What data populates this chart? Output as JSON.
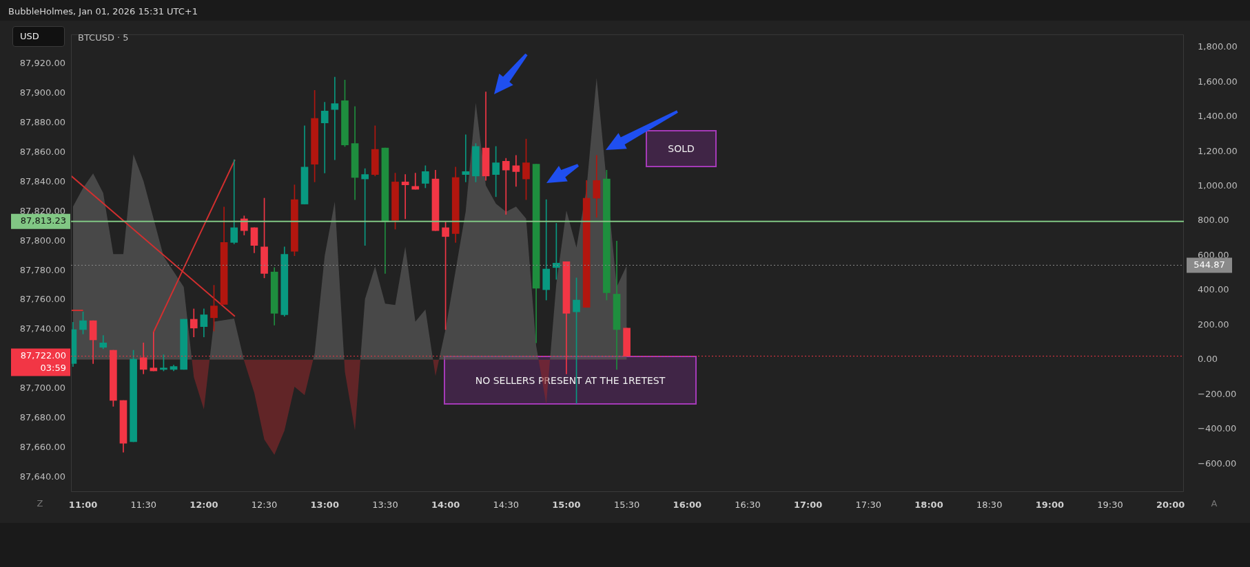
{
  "chart_data": {
    "type": "candlestick",
    "title": "BTCUSD · 5",
    "subtitle": "BubbleHolmes, Jan 01, 2026 15:31 UTC+1",
    "ylabel": "USD",
    "x": [
      10.9167,
      11,
      11.0833,
      11.1667,
      11.25,
      11.3333,
      11.4167,
      11.5,
      11.5833,
      11.6667,
      11.75,
      11.8333,
      11.9167,
      12,
      12.0833,
      12.1667,
      12.25,
      12.3333,
      12.4167,
      12.5,
      12.5833,
      12.6667,
      12.75,
      12.8333,
      12.9167,
      13,
      13.0833,
      13.1667,
      13.25,
      13.3333,
      13.4167,
      13.5,
      13.5833,
      13.6667,
      13.75,
      13.8333,
      13.9167,
      14,
      14.0833,
      14.1667,
      14.25,
      14.3333,
      14.4167,
      14.5,
      14.5833,
      14.6667,
      14.75,
      14.8333,
      14.9167,
      15,
      15.0833,
      15.1667,
      15.25,
      15.3333,
      15.4167,
      15.5
    ],
    "ohlc": [
      [
        87717,
        87745,
        87715,
        87740
      ],
      [
        87740,
        87752,
        87737,
        87746
      ],
      [
        87746,
        87746,
        87717,
        87733
      ],
      [
        87728,
        87736,
        87727,
        87731
      ],
      [
        87726,
        87726,
        87688,
        87692
      ],
      [
        87692,
        87692,
        87657,
        87663
      ],
      [
        87664,
        87726,
        87664,
        87720
      ],
      [
        87721,
        87731,
        87710,
        87713
      ],
      [
        87714,
        87738,
        87712,
        87712
      ],
      [
        87713,
        87723,
        87712,
        87714
      ],
      [
        87713,
        87716,
        87712,
        87715
      ],
      [
        87713,
        87747,
        87713,
        87747
      ],
      [
        87747,
        87754,
        87735,
        87741
      ],
      [
        87742,
        87754,
        87735,
        87750
      ],
      [
        87748,
        87770,
        87739,
        87756
      ],
      [
        87757,
        87823,
        87757,
        87799
      ],
      [
        87799,
        87855,
        87798,
        87809
      ],
      [
        87815,
        87817,
        87804,
        87807
      ],
      [
        87809,
        87809,
        87792,
        87797
      ],
      [
        87796,
        87829,
        87775,
        87778
      ],
      [
        87779,
        87782,
        87743,
        87751
      ],
      [
        87750,
        87796,
        87749,
        87791
      ],
      [
        87793,
        87838,
        87790,
        87828
      ],
      [
        87825,
        87878,
        87825,
        87850
      ],
      [
        87852,
        87902,
        87840,
        87883
      ],
      [
        87880,
        87894,
        87846,
        87888
      ],
      [
        87889,
        87911,
        87855,
        87893
      ],
      [
        87895,
        87909,
        87864,
        87865
      ],
      [
        87866,
        87891,
        87828,
        87843
      ],
      [
        87842,
        87849,
        87797,
        87845
      ],
      [
        87845,
        87878,
        87844,
        87862
      ],
      [
        87863,
        87863,
        87778,
        87813
      ],
      [
        87814,
        87846,
        87808,
        87840
      ],
      [
        87840,
        87845,
        87815,
        87838
      ],
      [
        87837,
        87846,
        87835,
        87835
      ],
      [
        87839,
        87851,
        87836,
        87847
      ],
      [
        87842,
        87848,
        87807,
        87807
      ],
      [
        87809,
        87813,
        87740,
        87803
      ],
      [
        87805,
        87850,
        87799,
        87843
      ],
      [
        87845,
        87872,
        87840,
        87847
      ],
      [
        87844,
        87866,
        87840,
        87864
      ],
      [
        87863,
        87901,
        87841,
        87844
      ],
      [
        87845,
        87864,
        87830,
        87853
      ],
      [
        87854,
        87856,
        87818,
        87848
      ],
      [
        87851,
        87858,
        87837,
        87847
      ],
      [
        87842,
        87869,
        87828,
        87853
      ],
      [
        87852,
        87852,
        87731,
        87768
      ],
      [
        87767,
        87828,
        87760,
        87781
      ],
      [
        87782,
        87812,
        87774,
        87785
      ],
      [
        87786,
        87786,
        87710,
        87751
      ],
      [
        87752,
        87775,
        87690,
        87760
      ],
      [
        87755,
        87841,
        87755,
        87829
      ],
      [
        87829,
        87858,
        87816,
        87841
      ],
      [
        87842,
        87848,
        87760,
        87765
      ],
      [
        87764,
        87800,
        87713,
        87740
      ],
      [
        87741,
        87741,
        87722,
        87722
      ]
    ],
    "colors": [
      "#089981",
      "#089981",
      "#f23645",
      "#089981",
      "#f23645",
      "#f23645",
      "#089981",
      "#f23645",
      "#f23645",
      "#089981",
      "#089981",
      "#089981",
      "#f23645",
      "#089981",
      "#b2160f",
      "#b2160f",
      "#089981",
      "#f23645",
      "#f23645",
      "#f23645",
      "#1e8e3e",
      "#089981",
      "#b2160f",
      "#089981",
      "#b2160f",
      "#089981",
      "#089981",
      "#1e8e3e",
      "#1e8e3e",
      "#089981",
      "#b2160f",
      "#1e8e3e",
      "#b2160f",
      "#f23645",
      "#f23645",
      "#089981",
      "#f23645",
      "#f23645",
      "#b2160f",
      "#089981",
      "#089981",
      "#f23645",
      "#089981",
      "#f23645",
      "#f23645",
      "#b2160f",
      "#1e8e3e",
      "#089981",
      "#089981",
      "#f23645",
      "#089981",
      "#b2160f",
      "#b2160f",
      "#1e8e3e",
      "#1e8e3e",
      "#f23645"
    ],
    "series": [
      {
        "type": "area",
        "axis": "y2",
        "color": "#5a5a5a",
        "values": [
          883,
          990,
          1074,
          961,
          609,
          609,
          1184,
          1031,
          813,
          595,
          508,
          420,
          -100,
          -286,
          220,
          null,
          237,
          -7,
          -190,
          -460,
          -548,
          -408,
          -155,
          -204,
          37,
          600,
          912,
          -68,
          -408,
          350,
          539,
          324,
          316,
          652,
          220,
          290,
          -94,
          176,
          null,
          856,
          1481,
          1005,
          900,
          853,
          883,
          813,
          80,
          -256,
          438,
          860,
          647,
          987,
          1624,
          null,
          420,
          545
        ]
      },
      {
        "type": "line",
        "color": "#d32f2f",
        "x": [
          10.9025,
          12.2567
        ],
        "values": [
          87844,
          87749
        ]
      },
      {
        "type": "line",
        "color": "#d32f2f",
        "x": [
          11.5817,
          12.2567
        ],
        "values": [
          87738,
          87855
        ]
      },
      {
        "type": "line",
        "color": "#d32f2f",
        "x": [
          10.9025,
          11
        ],
        "values": [
          87753,
          87753
        ]
      }
    ],
    "xlim": [
      10.9,
      20.11
    ],
    "xticks": [
      {
        "value": 11,
        "label": "11:00"
      },
      {
        "value": 11.5,
        "label": "11:30"
      },
      {
        "value": 12,
        "label": "12:00"
      },
      {
        "value": 12.5,
        "label": "12:30"
      },
      {
        "value": 13,
        "label": "13:00"
      },
      {
        "value": 13.5,
        "label": "13:30"
      },
      {
        "value": 14,
        "label": "14:00"
      },
      {
        "value": 14.5,
        "label": "14:30"
      },
      {
        "value": 15,
        "label": "15:00"
      },
      {
        "value": 15.5,
        "label": "15:30"
      },
      {
        "value": 16,
        "label": "16:00"
      },
      {
        "value": 16.5,
        "label": "16:30"
      },
      {
        "value": 17,
        "label": "17:00"
      },
      {
        "value": 17.5,
        "label": "17:30"
      },
      {
        "value": 18,
        "label": "18:00"
      },
      {
        "value": 18.5,
        "label": "18:30"
      },
      {
        "value": 19,
        "label": "19:00"
      },
      {
        "value": 19.5,
        "label": "19:30"
      },
      {
        "value": 20,
        "label": "20:00"
      }
    ],
    "ylim": [
      87630,
      87940
    ],
    "yticks": [
      {
        "value": 87640,
        "label": "87,640.00"
      },
      {
        "value": 87660,
        "label": "87,660.00"
      },
      {
        "value": 87680,
        "label": "87,680.00"
      },
      {
        "value": 87700,
        "label": "87,700.00"
      },
      {
        "value": 87740,
        "label": "87,740.00"
      },
      {
        "value": 87760,
        "label": "87,760.00"
      },
      {
        "value": 87780,
        "label": "87,780.00"
      },
      {
        "value": 87800,
        "label": "87,800.00"
      },
      {
        "value": 87820,
        "label": "87,820.00"
      },
      {
        "value": 87840,
        "label": "87,840.00"
      },
      {
        "value": 87860,
        "label": "87,860.00"
      },
      {
        "value": 87880,
        "label": "87,880.00"
      },
      {
        "value": 87900,
        "label": "87,900.00"
      },
      {
        "value": 87920,
        "label": "87,920.00"
      }
    ],
    "y2lim": [
      -762,
      1876
    ],
    "y2ticks": [
      {
        "value": -600,
        "label": "−600.00"
      },
      {
        "value": -400,
        "label": "−400.00"
      },
      {
        "value": -200,
        "label": "−200.00"
      },
      {
        "value": 0,
        "label": "0.00"
      },
      {
        "value": 200,
        "label": "200.00"
      },
      {
        "value": 400,
        "label": "400.00"
      },
      {
        "value": 600,
        "label": "600.00"
      },
      {
        "value": 800,
        "label": "800.00"
      },
      {
        "value": 1000,
        "label": "1,000.00"
      },
      {
        "value": 1200,
        "label": "1,200.00"
      },
      {
        "value": 1400,
        "label": "1,400.00"
      },
      {
        "value": 1600,
        "label": "1,600.00"
      },
      {
        "value": 1800,
        "label": "1,800.00"
      }
    ],
    "ref_lines": [
      {
        "axis": "y",
        "value": 87813.23,
        "label": "87,813.23",
        "color": "#81c784",
        "line_style": "solid"
      },
      {
        "axis": "y",
        "value": 87722,
        "label": "87,722.00",
        "color": "#f23645",
        "line_style": "dotted"
      },
      {
        "axis": "y2",
        "value": 544.87,
        "label": "544.87",
        "color": "#8a8a8a",
        "line_style": "dotted"
      }
    ],
    "annotations": [
      "03:59",
      "SOLD",
      "NO SELLERS PRESENT AT THE 1RETEST",
      "Z",
      "A"
    ],
    "grid": false,
    "legend": false
  }
}
